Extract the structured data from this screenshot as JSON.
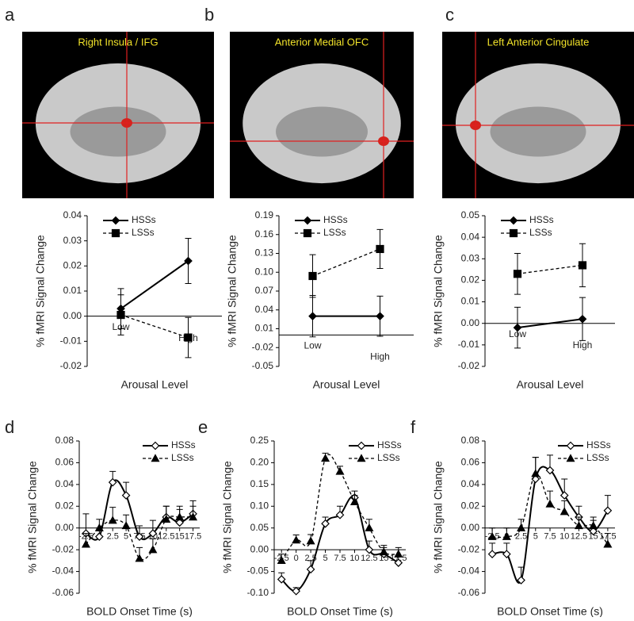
{
  "chart_data": [
    {
      "type": "line",
      "panel": "a",
      "image_title": "Right Insula / IFG",
      "xlabel": "Arousal Level",
      "ylabel": "% fMRI Signal Change",
      "categories": [
        "Low",
        "High"
      ],
      "ylim": [
        -0.02,
        0.04
      ],
      "yticks": [
        -0.02,
        -0.01,
        {
          "value": 0,
          "label": "0.00"
        },
        0.01,
        0.02,
        0.03,
        0.04
      ],
      "error_bars": "both",
      "series": [
        {
          "name": "HSSs",
          "color": "#000",
          "dash": "solid",
          "marker": "diamond",
          "marker_fill": "#000",
          "values": [
            0.003,
            0.022
          ],
          "errors": [
            0.008,
            0.009
          ]
        },
        {
          "name": "LSSs",
          "color": "#000",
          "dash": "dashed",
          "marker": "square",
          "marker_fill": "#000",
          "values": [
            0.0005,
            -0.0085
          ],
          "errors": [
            0.008,
            0.008
          ]
        }
      ]
    },
    {
      "type": "line",
      "panel": "b",
      "image_title": "Anterior Medial OFC",
      "xlabel": "Arousal Level",
      "ylabel": "% fMRI Signal Change",
      "categories": [
        "Low",
        "High"
      ],
      "ylim": [
        -0.05,
        0.19
      ],
      "yticks": [
        -0.05,
        -0.02,
        0.01,
        0.04,
        0.07,
        {
          "value": 0.1,
          "label": "0.10"
        },
        0.13,
        0.16,
        0.19
      ],
      "error_bars": "both",
      "series": [
        {
          "name": "HSSs",
          "color": "#000",
          "dash": "solid",
          "marker": "diamond",
          "marker_fill": "#000",
          "values": [
            0.03,
            0.03
          ],
          "errors": [
            0.033,
            0.032
          ]
        },
        {
          "name": "LSSs",
          "color": "#000",
          "dash": "dashed",
          "marker": "square",
          "marker_fill": "#000",
          "values": [
            0.094,
            0.137
          ],
          "errors": [
            0.034,
            0.031
          ]
        }
      ]
    },
    {
      "type": "line",
      "panel": "c",
      "image_title": "Left Anterior Cingulate",
      "xlabel": "Arousal Level",
      "ylabel": "% fMRI Signal Change",
      "categories": [
        "Low",
        "High"
      ],
      "ylim": [
        -0.02,
        0.05
      ],
      "yticks": [
        -0.02,
        -0.01,
        {
          "value": 0,
          "label": "0.00"
        },
        0.01,
        0.02,
        0.03,
        0.04,
        0.05
      ],
      "error_bars": "both",
      "series": [
        {
          "name": "HSSs",
          "color": "#000",
          "dash": "solid",
          "marker": "diamond",
          "marker_fill": "#000",
          "values": [
            -0.002,
            0.002
          ],
          "errors": [
            0.0095,
            0.01
          ]
        },
        {
          "name": "LSSs",
          "color": "#000",
          "dash": "dashed",
          "marker": "square",
          "marker_fill": "#000",
          "values": [
            0.023,
            0.027
          ],
          "errors": [
            0.0095,
            0.01
          ]
        }
      ]
    },
    {
      "type": "smooth",
      "panel": "d",
      "xlabel": "BOLD Onset Time (s)",
      "ylabel": "% fMRI Signal Change",
      "x": [
        -2.5,
        0,
        2.5,
        5,
        7.5,
        10,
        12.5,
        15,
        17.5
      ],
      "xlim": [
        -3.75,
        18.75
      ],
      "xticks": [
        -2.5,
        0,
        2.5,
        5,
        7.5,
        10,
        12.5,
        15,
        17.5
      ],
      "ylim": [
        -0.06,
        0.08
      ],
      "yticks": [
        -0.06,
        -0.04,
        -0.02,
        {
          "value": 0,
          "label": "0.00"
        },
        0.02,
        0.04,
        0.06,
        0.08
      ],
      "error_bars": "up",
      "series": [
        {
          "name": "HSSs",
          "color": "#000",
          "dash": "solid",
          "marker": "diamond",
          "marker_fill": "#fff",
          "values": [
            -0.005,
            -0.008,
            0.042,
            0.03,
            -0.008,
            -0.005,
            0.01,
            0.005,
            0.013
          ],
          "errors": [
            0.018,
            0.008,
            0.01,
            0.012,
            0.01,
            0.012,
            0.01,
            0.012,
            0.012
          ]
        },
        {
          "name": "LSSs",
          "color": "#000",
          "dash": "dashed",
          "marker": "triangle",
          "marker_fill": "#000",
          "values": [
            -0.015,
            0,
            0.007,
            0.002,
            -0.028,
            -0.02,
            0.008,
            0.01,
            0.01
          ],
          "errors": [
            0.01,
            0.008,
            0.012,
            0.01,
            0.01,
            0.01,
            0.012,
            0.01,
            0.01
          ]
        }
      ]
    },
    {
      "type": "smooth",
      "panel": "e",
      "xlabel": "BOLD Onset Time (s)",
      "ylabel": "% fMRI Signal Change",
      "x": [
        -2.5,
        0,
        2.5,
        5,
        7.5,
        10,
        12.5,
        15,
        17.5
      ],
      "xlim": [
        -3.75,
        18.75
      ],
      "xticks": [
        -2.5,
        0,
        2.5,
        5,
        7.5,
        10,
        12.5,
        15,
        17.5
      ],
      "ylim": [
        -0.1,
        0.25
      ],
      "yticks": [
        {
          "value": -0.1,
          "label": "-0.10"
        },
        -0.05,
        {
          "value": 0,
          "label": "0.00"
        },
        0.05,
        {
          "value": 0.1,
          "label": "0.10"
        },
        0.15,
        {
          "value": 0.2,
          "label": "0.20"
        },
        0.25
      ],
      "error_bars": "up",
      "series": [
        {
          "name": "HSSs",
          "color": "#000",
          "dash": "solid",
          "marker": "diamond",
          "marker_fill": "#fff",
          "values": [
            -0.068,
            -0.095,
            -0.045,
            0.06,
            0.08,
            0.12,
            0,
            -0.01,
            -0.03
          ],
          "errors": [
            0.015,
            0.008,
            0.02,
            0.015,
            0.02,
            0.015,
            0.02,
            0.015,
            0.015
          ]
        },
        {
          "name": "LSSs",
          "color": "#000",
          "dash": "dashed",
          "marker": "triangle",
          "marker_fill": "#000",
          "values": [
            -0.025,
            0.022,
            0.02,
            0.21,
            0.18,
            0.11,
            0.05,
            -0.005,
            -0.01
          ],
          "errors": [
            0.015,
            0.012,
            0.015,
            0.012,
            0.012,
            0.015,
            0.02,
            0.015,
            0.015
          ]
        }
      ]
    },
    {
      "type": "smooth",
      "panel": "f",
      "xlabel": "BOLD Onset Time (s)",
      "ylabel": "% fMRI Signal Change",
      "x": [
        -2.5,
        0,
        2.5,
        5,
        7.5,
        10,
        12.5,
        15,
        17.5
      ],
      "xlim": [
        -3.75,
        18.75
      ],
      "xticks": [
        -2.5,
        0,
        2.5,
        5,
        7.5,
        10,
        12.5,
        15,
        17.5
      ],
      "ylim": [
        -0.06,
        0.08
      ],
      "yticks": [
        -0.06,
        -0.04,
        -0.02,
        {
          "value": 0,
          "label": "0.00"
        },
        0.02,
        0.04,
        0.06,
        0.08
      ],
      "error_bars": "up",
      "series": [
        {
          "name": "HSSs",
          "color": "#000",
          "dash": "solid",
          "marker": "diamond",
          "marker_fill": "#fff",
          "values": [
            -0.024,
            -0.024,
            -0.048,
            0.045,
            0.053,
            0.03,
            0.01,
            -0.003,
            0.016
          ],
          "errors": [
            0.01,
            0.01,
            0.012,
            0.02,
            0.014,
            0.015,
            0.01,
            0.01,
            0.014
          ]
        },
        {
          "name": "LSSs",
          "color": "#000",
          "dash": "dashed",
          "marker": "triangle",
          "marker_fill": "#000",
          "values": [
            -0.008,
            -0.008,
            0,
            0.05,
            0.022,
            0.015,
            0.002,
            0.002,
            -0.015
          ],
          "errors": [
            0.008,
            0.008,
            0.008,
            0.015,
            0.012,
            0.01,
            0.008,
            0.008,
            0.01
          ]
        }
      ]
    }
  ]
}
